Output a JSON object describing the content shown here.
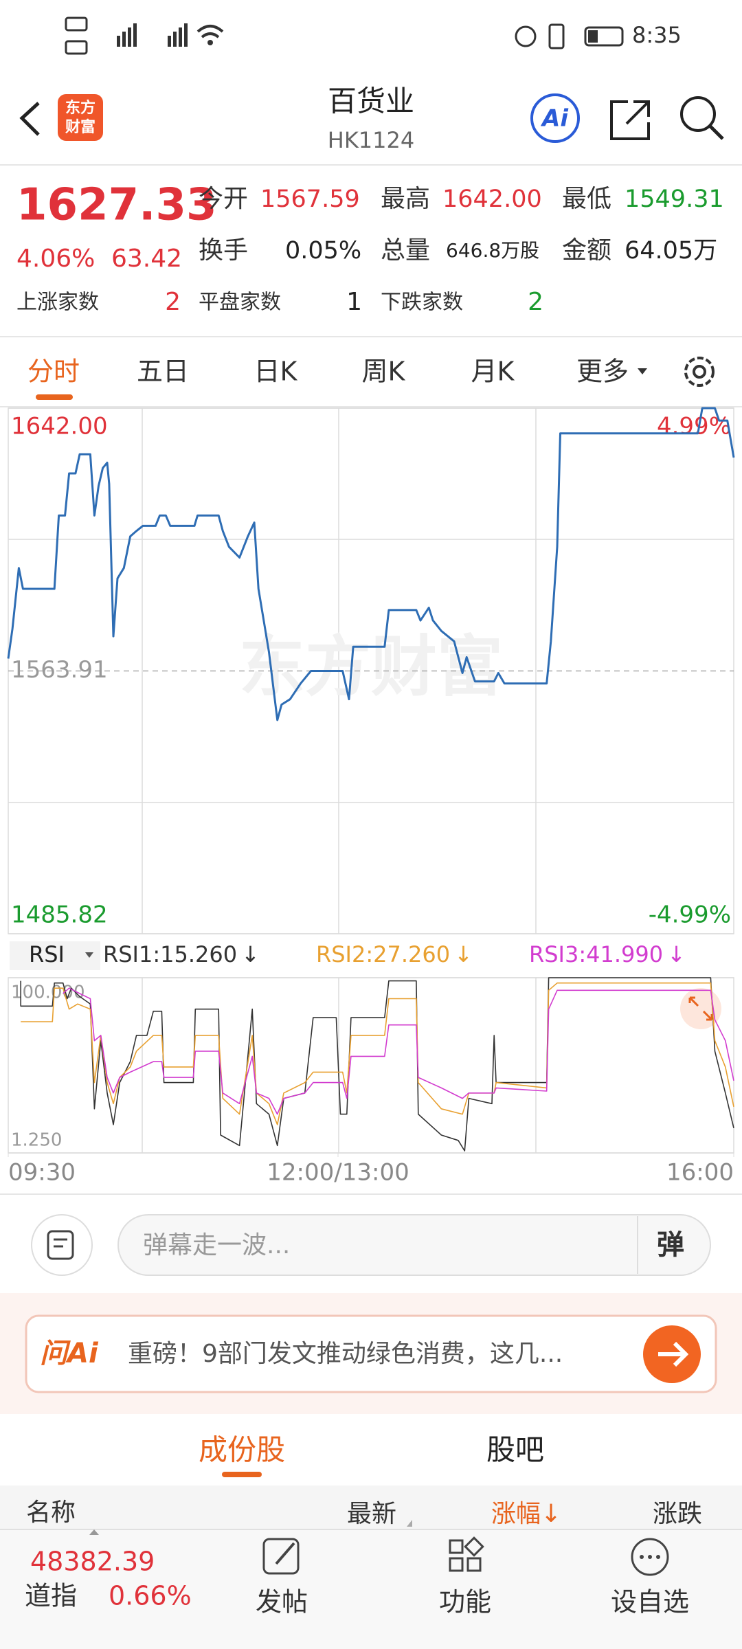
{
  "status_bar": {
    "time": "8:35"
  },
  "header": {
    "logo": [
      "东方",
      "财富"
    ],
    "title": "百货业",
    "code": "HK1124",
    "ai_button": "Ai"
  },
  "quote": {
    "price": "1627.33",
    "change_percent": "4.06%",
    "change": "63.42",
    "stats": [
      {
        "label": "今开",
        "value": "1567.59"
      },
      {
        "label": "最高",
        "value": "1642.00"
      },
      {
        "label": "最低",
        "value": "1549.31"
      },
      {
        "label": "换手",
        "value": "0.05%"
      },
      {
        "label": "总量",
        "value": "646.8万股"
      },
      {
        "label": "金额",
        "value": "64.05万"
      }
    ],
    "breadth": [
      {
        "label": "上涨家数",
        "value": "2"
      },
      {
        "label": "平盘家数",
        "value": "1"
      },
      {
        "label": "下跌家数",
        "value": "2"
      }
    ]
  },
  "period_tabs": [
    "分时",
    "五日",
    "日K",
    "周K",
    "月K",
    "更多"
  ],
  "chart_data": [
    {
      "type": "line",
      "watermark": "东方财富",
      "grid": true,
      "xlim": [
        0,
        330
      ],
      "ylim": [
        1485.82,
        1642.0
      ],
      "yticks": [
        {
          "value": 1642.0,
          "label": "1642.00"
        },
        {
          "value": 1563.91,
          "label": "1563.91"
        },
        {
          "value": 1485.82,
          "label": "1485.82"
        }
      ],
      "y2lim": [
        -4.99,
        4.99
      ],
      "y2ticks": [
        {
          "value": 4.99,
          "label": "4.99%"
        },
        {
          "value": -4.99,
          "label": "-4.99%"
        }
      ],
      "series": [
        {
          "color": "#2e6db4",
          "x": [
            0,
            1.9,
            4.8,
            6.7,
            21.0,
            23.0,
            25.8,
            27.7,
            30.6,
            32.5,
            37.3,
            39.2,
            41.1,
            43.0,
            45.0,
            45.9,
            47.8,
            49.7,
            52.6,
            55.5,
            58.3,
            61.2,
            67.0,
            68.9,
            71.7,
            73.7,
            84.7,
            86.1,
            95.7,
            97.6,
            100.4,
            105.2,
            109.0,
            111.9,
            113.8,
            118.6,
            122.4,
            124.3,
            128.2,
            133.0,
            137.7,
            152.1,
            155.0,
            156.9,
            171.2,
            173.1,
            185.6,
            187.5,
            191.3,
            193.2,
            197.0,
            202.8,
            206.6,
            208.5,
            212.3,
            221.0,
            222.9,
            225.7,
            244.9,
            246.8,
            249.7,
            251.1,
            313.7,
            315.7,
            321.4,
            323.3,
            327.1,
            330
          ],
          "values": [
            1567.59,
            1576.4,
            1594.5,
            1588.3,
            1588.3,
            1610.1,
            1610.1,
            1622.6,
            1622.6,
            1628.3,
            1628.3,
            1610.1,
            1618.9,
            1624.2,
            1625.8,
            1619.5,
            1574.2,
            1591.4,
            1594.5,
            1603.9,
            1605.5,
            1607.0,
            1607.0,
            1610.1,
            1610.1,
            1607.0,
            1607.0,
            1610.1,
            1610.1,
            1605.5,
            1600.8,
            1597.6,
            1603.9,
            1608.0,
            1588.3,
            1569.5,
            1549.31,
            1553.9,
            1555.5,
            1560.2,
            1563.9,
            1563.9,
            1555.5,
            1571.1,
            1571.1,
            1582.0,
            1582.0,
            1578.9,
            1582.7,
            1578.9,
            1575.8,
            1572.7,
            1563.3,
            1568.0,
            1560.8,
            1560.8,
            1563.3,
            1560.2,
            1560.2,
            1572.7,
            1600.8,
            1634.5,
            1634.5,
            1642.0,
            1642.0,
            1638.3,
            1638.3,
            1627.33
          ]
        }
      ]
    },
    {
      "type": "line",
      "indicator": "RSI",
      "grid": true,
      "xlim": [
        0,
        330
      ],
      "xticks": [
        {
          "value": 0,
          "label": "09:30"
        },
        {
          "value": 150,
          "label": "12:00/13:00"
        },
        {
          "value": 330,
          "label": "16:00"
        }
      ],
      "ylim": [
        1.25,
        100
      ],
      "yticks": [
        {
          "value": 100,
          "label": "100.000"
        },
        {
          "value": 1.25,
          "label": "1.250"
        }
      ],
      "series": [
        {
          "name": "RSI1:15.260",
          "trend": "↓",
          "color": "#333333",
          "x": [
            5.7,
            5.7,
            20.1,
            21.0,
            24.9,
            26.8,
            28.7,
            32.5,
            37.3,
            39.2,
            42.1,
            45.0,
            47.8,
            50.7,
            55.5,
            58.3,
            63.1,
            66.0,
            69.8,
            70.8,
            84.2,
            85.1,
            95.7,
            96.6,
            105.2,
            111.0,
            112.9,
            118.6,
            122.4,
            125.3,
            134.9,
            138.7,
            149.2,
            151.1,
            154.0,
            155.9,
            171.2,
            173.1,
            185.6,
            186.5,
            197.0,
            204.7,
            207.6,
            209.5,
            220.0,
            221.0,
            221.9,
            244.9,
            245.8,
            319.5,
            321.4,
            326.2,
            330
          ],
          "values": [
            98.2,
            84.0,
            84.0,
            97.0,
            97.0,
            88.2,
            94.1,
            89.4,
            85.2,
            26.1,
            64.5,
            35.0,
            17.2,
            40.9,
            52.7,
            67.5,
            67.5,
            81.1,
            81.1,
            40.9,
            40.9,
            82.3,
            82.3,
            11.3,
            5.4,
            82.3,
            29.0,
            23.1,
            5.4,
            32.0,
            35.0,
            77.5,
            77.5,
            23.1,
            23.1,
            77.5,
            77.5,
            98.2,
            98.2,
            23.1,
            11.3,
            8.3,
            2.4,
            32.0,
            29.0,
            67.5,
            40.9,
            40.9,
            100,
            100,
            58.6,
            35.0,
            15.26
          ]
        },
        {
          "name": "RSI2:27.260",
          "trend": "↓",
          "color": "#e8a030",
          "x": [
            5.7,
            20.1,
            21.0,
            24.9,
            27.7,
            31.6,
            37.3,
            39.2,
            42.1,
            45.0,
            47.8,
            50.7,
            55.5,
            58.3,
            66.0,
            69.8,
            70.8,
            84.2,
            85.1,
            95.7,
            97.6,
            105.2,
            111.0,
            112.9,
            118.6,
            122.4,
            125.3,
            134.9,
            138.7,
            152.1,
            154.0,
            155.9,
            171.2,
            173.1,
            185.6,
            186.5,
            197.0,
            206.6,
            209.5,
            221.0,
            221.9,
            244.9,
            245.8,
            249.7,
            319.5,
            321.4,
            326.2,
            330
          ],
          "values": [
            75.2,
            75.2,
            94.1,
            94.1,
            82.3,
            85.2,
            82.3,
            40.9,
            67.5,
            40.9,
            29.0,
            43.8,
            49.7,
            58.6,
            67.5,
            67.5,
            49.7,
            49.7,
            67.5,
            67.5,
            32.0,
            23.1,
            67.5,
            35.0,
            29.0,
            17.2,
            35.0,
            40.9,
            46.8,
            46.8,
            35.0,
            67.5,
            67.5,
            88.2,
            88.2,
            40.9,
            26.1,
            23.1,
            35.0,
            35.0,
            40.9,
            37.9,
            92.9,
            97.0,
            97.0,
            64.5,
            49.7,
            27.26
          ]
        },
        {
          "name": "RSI3:41.990",
          "trend": "↓",
          "color": "#d23ccf",
          "x": [
            24.9,
            27.7,
            32.5,
            37.3,
            39.2,
            42.1,
            45.0,
            47.8,
            50.7,
            55.5,
            66.0,
            69.8,
            70.8,
            84.2,
            85.1,
            95.7,
            97.6,
            105.2,
            111.0,
            112.9,
            118.6,
            122.4,
            125.3,
            134.9,
            138.7,
            152.1,
            154.0,
            155.9,
            171.2,
            173.1,
            185.6,
            186.5,
            197.0,
            206.6,
            209.5,
            221.0,
            221.9,
            244.9,
            245.8,
            249.7,
            319.5,
            321.4,
            326.2,
            330
          ],
          "values": [
            91.1,
            94.1,
            91.1,
            88.2,
            64.5,
            67.5,
            43.8,
            35.0,
            43.8,
            46.8,
            52.7,
            52.7,
            43.8,
            43.8,
            58.6,
            58.6,
            35.0,
            29.0,
            55.7,
            35.0,
            32.0,
            23.1,
            32.0,
            35.0,
            40.9,
            40.9,
            32.0,
            55.7,
            55.7,
            73.4,
            73.4,
            43.8,
            37.9,
            32.0,
            35.0,
            35.0,
            37.9,
            36.1,
            82.3,
            92.9,
            92.9,
            76.3,
            64.5,
            41.99
          ]
        }
      ]
    }
  ],
  "comment_bar": {
    "placeholder": "弹幕走一波...",
    "button": "弹"
  },
  "ai_banner": {
    "logo": "问Ai",
    "text": "重磅！9部门发文推动绿色消费，这几..."
  },
  "section_tabs": [
    "成份股",
    "股吧"
  ],
  "table": {
    "columns": [
      "名称",
      "最新",
      "涨幅↓",
      "涨跌"
    ]
  },
  "bottom_bar": {
    "index_value": "48382.39",
    "index_name": "道指",
    "index_change": "0.66%",
    "actions": [
      "发帖",
      "功能",
      "设自选"
    ]
  }
}
